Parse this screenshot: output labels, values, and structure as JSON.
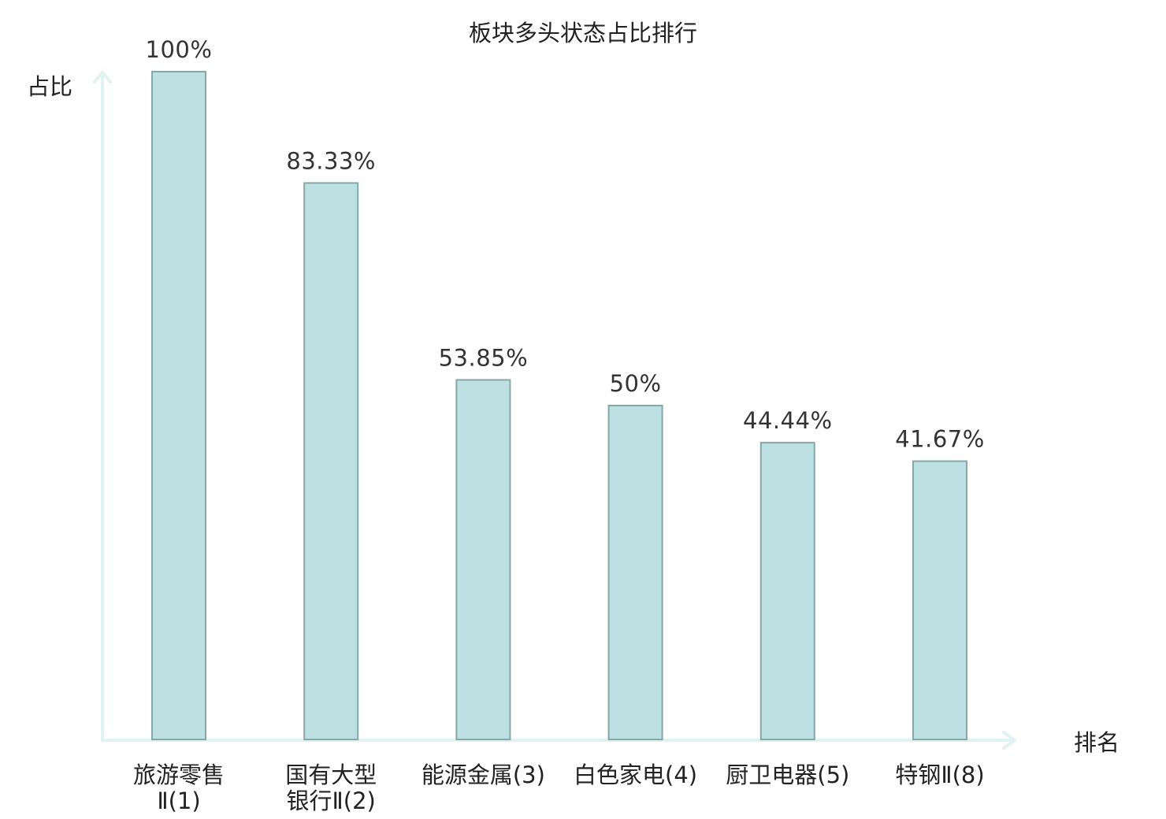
{
  "chart_data": {
    "type": "bar",
    "title": "板块多头状态占比排行",
    "ylabel": "占比",
    "xlabel": "排名",
    "ylim": [
      0,
      100
    ],
    "grid": false,
    "categories": [
      {
        "lines": [
          "旅游零售",
          "Ⅱ(1)"
        ],
        "highlight": false
      },
      {
        "lines": [
          "国有大型",
          "银行Ⅱ(2)"
        ],
        "highlight": false
      },
      {
        "lines": [
          "能源金属(3)"
        ],
        "highlight": false
      },
      {
        "lines": [
          "白色家电(4)"
        ],
        "highlight": false
      },
      {
        "lines": [
          "厨卫电器(5)"
        ],
        "highlight": false
      },
      {
        "lines": [
          "特钢Ⅱ(8)"
        ],
        "highlight": true
      }
    ],
    "values": [
      100,
      83.33,
      53.85,
      50,
      44.44,
      41.67
    ],
    "value_labels": [
      "100%",
      "83.33%",
      "53.85%",
      "50%",
      "44.44%",
      "41.67%"
    ],
    "colors": {
      "bar_fill": "#bde0e3",
      "bar_stroke": "#86a7aa",
      "axis": "#e0f3f0",
      "label": "#222222",
      "highlight": "#e8201e"
    }
  }
}
